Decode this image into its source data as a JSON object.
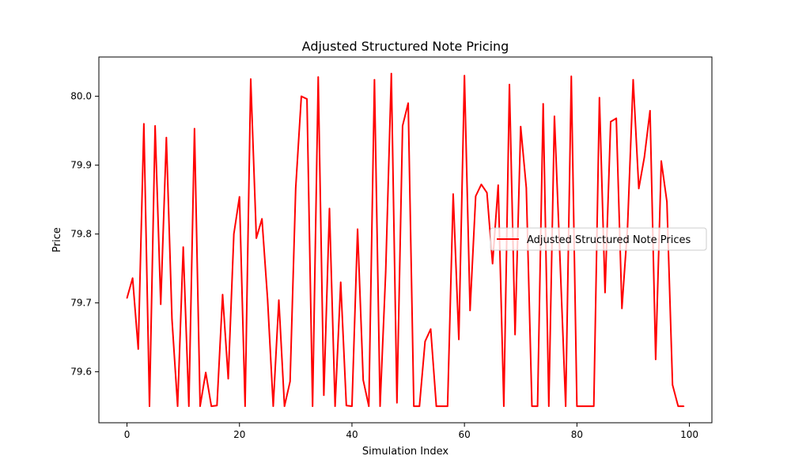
{
  "chart_data": {
    "type": "line",
    "title": "Adjusted Structured Note Pricing",
    "xlabel": "Simulation Index",
    "ylabel": "Price",
    "xlim": [
      -5,
      104
    ],
    "ylim": [
      79.526,
      80.057
    ],
    "xticks": [
      0,
      20,
      40,
      60,
      80,
      100
    ],
    "xtick_labels": [
      "0",
      "20",
      "40",
      "60",
      "80",
      "100"
    ],
    "yticks": [
      79.6,
      79.7,
      79.8,
      79.9,
      80.0
    ],
    "ytick_labels": [
      "79.6",
      "79.7",
      "79.8",
      "79.9",
      "80.0"
    ],
    "grid": false,
    "legend_position": "center-right",
    "series": [
      {
        "name": "Adjusted Structured Note Prices",
        "color": "#ff0000",
        "x": [
          0,
          1,
          2,
          3,
          4,
          5,
          6,
          7,
          8,
          9,
          10,
          11,
          12,
          13,
          14,
          15,
          16,
          17,
          18,
          19,
          20,
          21,
          22,
          23,
          24,
          25,
          26,
          27,
          28,
          29,
          30,
          31,
          32,
          33,
          34,
          35,
          36,
          37,
          38,
          39,
          40,
          41,
          42,
          43,
          44,
          45,
          46,
          47,
          48,
          49,
          50,
          51,
          52,
          53,
          54,
          55,
          56,
          57,
          58,
          59,
          60,
          61,
          62,
          63,
          64,
          65,
          66,
          67,
          68,
          69,
          70,
          71,
          72,
          73,
          74,
          75,
          76,
          77,
          78,
          79,
          80,
          81,
          82,
          83,
          84,
          85,
          86,
          87,
          88,
          89,
          90,
          91,
          92,
          93,
          94,
          95,
          96,
          97,
          98,
          99
        ],
        "values": [
          79.707,
          79.736,
          79.633,
          79.96,
          79.55,
          79.957,
          79.698,
          79.94,
          79.676,
          79.55,
          79.781,
          79.55,
          79.953,
          79.55,
          79.599,
          79.55,
          79.551,
          79.712,
          79.59,
          79.8,
          79.854,
          79.55,
          80.025,
          79.794,
          79.822,
          79.705,
          79.55,
          79.704,
          79.55,
          79.586,
          79.867,
          80.0,
          79.996,
          79.55,
          80.028,
          79.566,
          79.837,
          79.55,
          79.73,
          79.551,
          79.55,
          79.807,
          79.588,
          79.55,
          80.024,
          79.55,
          79.745,
          80.033,
          79.555,
          79.957,
          79.99,
          79.55,
          79.55,
          79.644,
          79.662,
          79.55,
          79.55,
          79.55,
          79.858,
          79.647,
          80.03,
          79.689,
          79.855,
          79.872,
          79.86,
          79.757,
          79.871,
          79.55,
          80.017,
          79.654,
          79.956,
          79.867,
          79.55,
          79.55,
          79.989,
          79.55,
          79.971,
          79.762,
          79.55,
          80.029,
          79.55,
          79.55,
          79.55,
          79.55,
          79.998,
          79.715,
          79.963,
          79.968,
          79.692,
          79.81,
          80.024,
          79.866,
          79.912,
          79.979,
          79.618,
          79.906,
          79.847,
          79.581,
          79.55,
          79.55
        ]
      }
    ]
  }
}
